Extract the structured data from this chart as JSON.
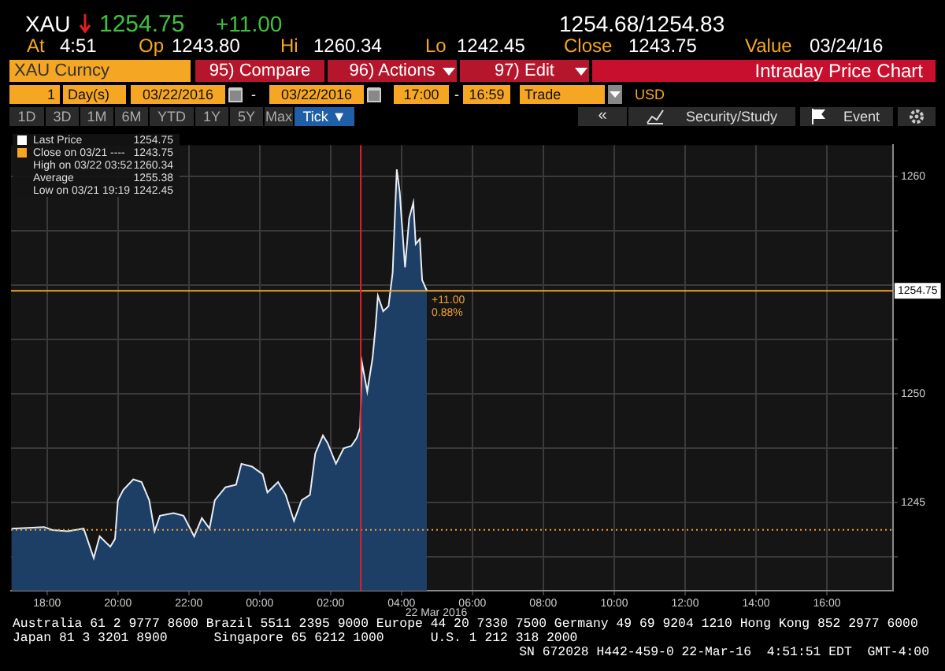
{
  "chart_data": {
    "type": "area",
    "title": "Intraday Price Chart",
    "x": [
      "2016-03-21T17:00",
      "2016-03-21T17:55",
      "2016-03-21T18:09",
      "2016-03-21T18:35",
      "2016-03-21T19:02",
      "2016-03-21T19:19",
      "2016-03-21T19:29",
      "2016-03-21T19:47",
      "2016-03-21T19:55",
      "2016-03-21T20:00",
      "2016-03-21T20:09",
      "2016-03-21T20:26",
      "2016-03-21T20:40",
      "2016-03-21T20:53",
      "2016-03-21T21:02",
      "2016-03-21T21:11",
      "2016-03-21T21:34",
      "2016-03-21T21:51",
      "2016-03-21T22:09",
      "2016-03-21T22:22",
      "2016-03-21T22:35",
      "2016-03-21T22:44",
      "2016-03-21T23:02",
      "2016-03-21T23:20",
      "2016-03-21T23:29",
      "2016-03-21T23:47",
      "2016-03-22T00:05",
      "2016-03-22T00:13",
      "2016-03-22T00:31",
      "2016-03-22T00:44",
      "2016-03-22T00:58",
      "2016-03-22T01:11",
      "2016-03-22T01:25",
      "2016-03-22T01:34",
      "2016-03-22T01:47",
      "2016-03-22T01:55",
      "2016-03-22T02:09",
      "2016-03-22T02:22",
      "2016-03-22T02:35",
      "2016-03-22T02:44",
      "2016-03-22T02:50",
      "2016-03-22T02:53",
      "2016-03-22T03:02",
      "2016-03-22T03:11",
      "2016-03-22T03:16",
      "2016-03-22T03:20",
      "2016-03-22T03:29",
      "2016-03-22T03:38",
      "2016-03-22T03:45",
      "2016-03-22T03:52",
      "2016-03-22T03:57",
      "2016-03-22T04:00",
      "2016-03-22T04:06",
      "2016-03-22T04:13",
      "2016-03-22T04:20",
      "2016-03-22T04:24",
      "2016-03-22T04:31",
      "2016-03-22T04:35",
      "2016-03-22T04:43"
    ],
    "series": [
      {
        "color": "#1d3f66",
        "values": [
          1243.8,
          1243.88,
          1243.74,
          1243.69,
          1243.81,
          1242.45,
          1243.45,
          1242.97,
          1243.33,
          1245.11,
          1245.59,
          1246.07,
          1245.95,
          1245.11,
          1243.69,
          1244.4,
          1244.52,
          1244.4,
          1243.45,
          1244.29,
          1243.81,
          1245.11,
          1245.71,
          1245.83,
          1246.79,
          1246.66,
          1246.31,
          1245.47,
          1245.95,
          1245.36,
          1244.16,
          1245.11,
          1245.36,
          1247.26,
          1248.09,
          1247.74,
          1246.79,
          1247.5,
          1247.61,
          1247.97,
          1248.45,
          1251.45,
          1250.11,
          1251.66,
          1253.09,
          1254.52,
          1253.81,
          1254.04,
          1255.59,
          1260.34,
          1259.29,
          1258.09,
          1255.83,
          1258.09,
          1258.81,
          1256.9,
          1257.14,
          1255.24,
          1254.75
        ]
      }
    ],
    "xlim": [
      "2016-03-21T16:59",
      "2016-03-22T17:52"
    ],
    "xticks": [
      {
        "value": "2016-03-21T18:00",
        "label": "18:00"
      },
      {
        "value": "2016-03-21T20:00",
        "label": "20:00"
      },
      {
        "value": "2016-03-21T22:00",
        "label": "22:00"
      },
      {
        "value": "2016-03-22T00:00",
        "label": "00:00"
      },
      {
        "value": "2016-03-22T02:00",
        "label": "02:00"
      },
      {
        "value": "2016-03-22T04:00",
        "label": "04:00"
      },
      {
        "value": "2016-03-22T06:00",
        "label": "06:00"
      },
      {
        "value": "2016-03-22T08:00",
        "label": "08:00"
      },
      {
        "value": "2016-03-22T10:00",
        "label": "10:00"
      },
      {
        "value": "2016-03-22T12:00",
        "label": "12:00"
      },
      {
        "value": "2016-03-22T14:00",
        "label": "14:00"
      },
      {
        "value": "2016-03-22T16:00",
        "label": "16:00"
      }
    ],
    "ylim": [
      1240.95,
      1261.45
    ],
    "yticks": [
      {
        "value": 1242.5,
        "label": null
      },
      1245,
      {
        "value": 1247.5,
        "label": null
      },
      1250,
      {
        "value": 1252.5,
        "label": null
      },
      {
        "value": 1255,
        "label": null
      },
      {
        "value": 1257.5,
        "label": null
      },
      1260
    ],
    "grid": true,
    "ref_lines": [
      {
        "axis": "y",
        "value": 1243.75,
        "color": "#f0a030",
        "line_style": "dotted"
      },
      {
        "axis": "y",
        "value": 1254.75,
        "label": "1254.75",
        "color": "#f0a030",
        "line_style": "solid"
      },
      {
        "axis": "x",
        "value": "2016-03-22T02:51",
        "color": "#e0202a",
        "line_style": "solid"
      }
    ],
    "annotations": [
      "XAU",
      "1254.75",
      "+11.00",
      "1254.68/1254.83",
      "At",
      "4:51",
      "Op",
      "1243.80",
      "Hi",
      "1260.34",
      "Lo",
      "1242.45",
      "Close",
      "1243.75",
      "Value",
      "03/24/16",
      "XAU Curncy",
      "95) Compare",
      "96) Actions",
      "97) Edit",
      "1",
      "Day(s)",
      "03/22/2016",
      "-",
      "03/22/2016",
      "17:00",
      "-",
      "16:59",
      "Trade",
      "USD",
      "1D",
      "3D",
      "1M",
      "6M",
      "YTD",
      "1Y",
      "5Y",
      "Max",
      "Tick ▼",
      "«",
      "Security/Study",
      "Event",
      "Last Price",
      "1254.75",
      "Close on 03/21 ----",
      "1243.75",
      "High on 03/22 03:52",
      "1260.34",
      "Average",
      "1255.38",
      "Low on 03/21 19:19",
      "1242.45",
      "22 Mar 2016",
      "Australia 61 2 9777 8600 Brazil 5511 2395 9000 Europe 44 20 7330 7500 Germany 49 69 9204 1210 Hong Kong 852 2977 6000",
      "Japan 81 3 3201 8900      Singapore 65 6212 1000      U.S. 1 212 318 2000",
      "SN 672028 H442-459-0 22-Mar-16  4:51:51 EDT  GMT-4:00",
      {
        "text": "+11.00",
        "x": "2016-03-22T04:43",
        "y": 1254.75
      },
      {
        "text": "0.88%",
        "x": "2016-03-22T04:43",
        "y": 1254.75
      }
    ]
  }
}
